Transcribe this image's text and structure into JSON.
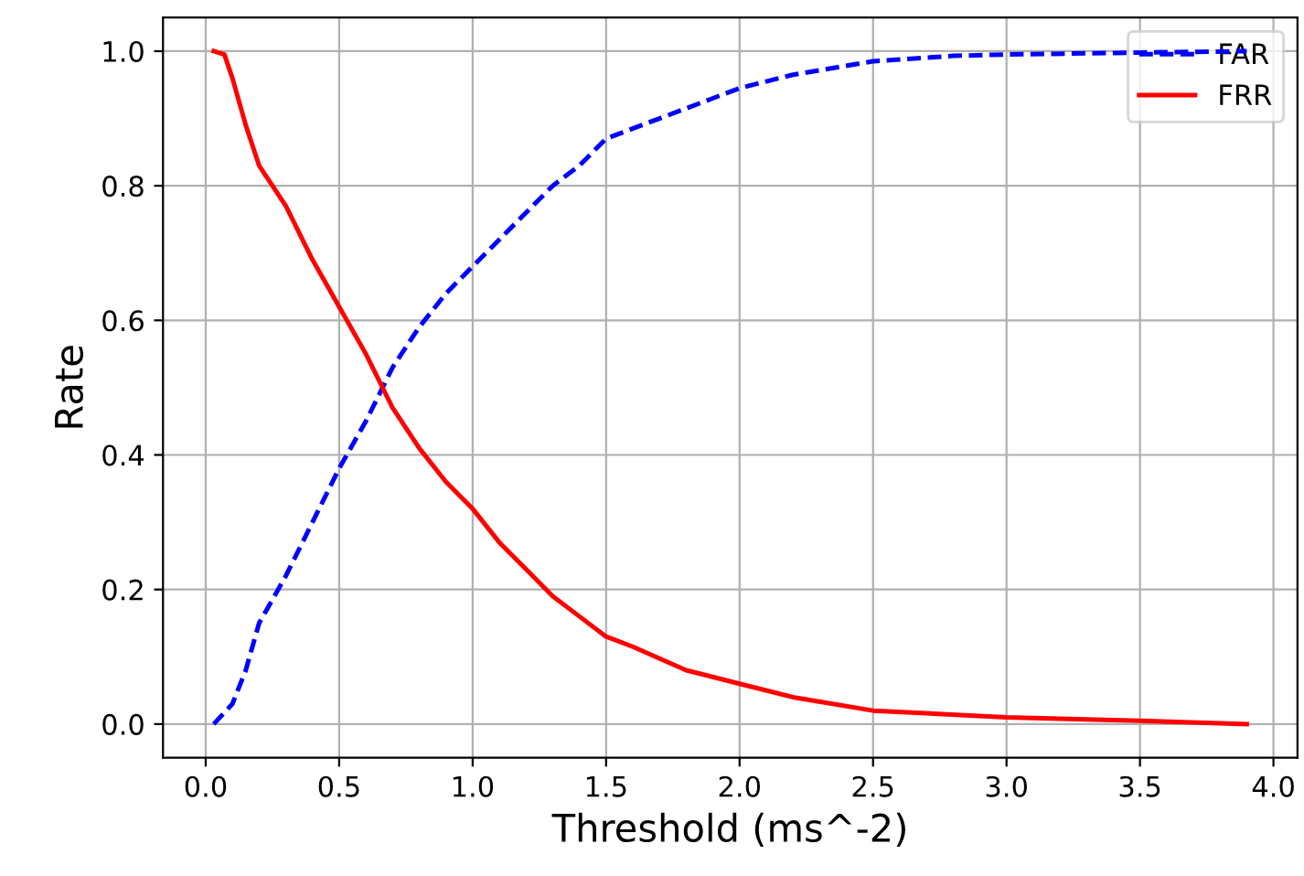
{
  "chart_data": {
    "type": "line",
    "xlabel": "Threshold (ms^-2)",
    "ylabel": "Rate",
    "xlim": [
      -0.16,
      4.09
    ],
    "ylim": [
      -0.05,
      1.05
    ],
    "xticks": [
      {
        "value": 0,
        "label": "0.0"
      },
      0.5,
      {
        "value": 1,
        "label": "1.0"
      },
      1.5,
      {
        "value": 2,
        "label": "2.0"
      },
      2.5,
      {
        "value": 3,
        "label": "3.0"
      },
      3.5,
      {
        "value": 4,
        "label": "4.0"
      }
    ],
    "yticks": [
      {
        "value": 0,
        "label": "0.0"
      },
      0.2,
      0.4,
      0.6,
      0.8,
      {
        "value": 1,
        "label": "1.0"
      }
    ],
    "grid": true,
    "legend": "top right",
    "series": [
      {
        "name": "FAR",
        "color": "#0000ff",
        "line_style": "dashed",
        "x": [
          0.03,
          0.1,
          0.15,
          0.2,
          0.3,
          0.4,
          0.5,
          0.6,
          0.7,
          0.8,
          0.9,
          1.0,
          1.1,
          1.2,
          1.3,
          1.4,
          1.5,
          1.7,
          1.9,
          2.0,
          2.2,
          2.5,
          2.8,
          3.0,
          3.5,
          3.9
        ],
        "values": [
          0,
          0.03,
          0.08,
          0.15,
          0.22,
          0.3,
          0.38,
          0.45,
          0.53,
          0.59,
          0.64,
          0.68,
          0.72,
          0.76,
          0.8,
          0.83,
          0.87,
          0.9,
          0.93,
          0.945,
          0.965,
          0.985,
          0.993,
          0.995,
          0.998,
          1.0
        ]
      },
      {
        "name": "FRR",
        "color": "#ff0000",
        "line_style": "solid",
        "x": [
          0.03,
          0.07,
          0.1,
          0.15,
          0.2,
          0.25,
          0.3,
          0.35,
          0.4,
          0.5,
          0.6,
          0.7,
          0.8,
          0.9,
          1.0,
          1.1,
          1.2,
          1.3,
          1.4,
          1.5,
          1.6,
          1.8,
          2.0,
          2.2,
          2.5,
          3.0,
          3.5,
          3.9
        ],
        "values": [
          1.0,
          0.995,
          0.96,
          0.89,
          0.83,
          0.8,
          0.77,
          0.73,
          0.69,
          0.62,
          0.55,
          0.47,
          0.41,
          0.36,
          0.32,
          0.27,
          0.23,
          0.19,
          0.16,
          0.13,
          0.115,
          0.08,
          0.06,
          0.04,
          0.02,
          0.01,
          0.005,
          0.0
        ]
      }
    ]
  }
}
